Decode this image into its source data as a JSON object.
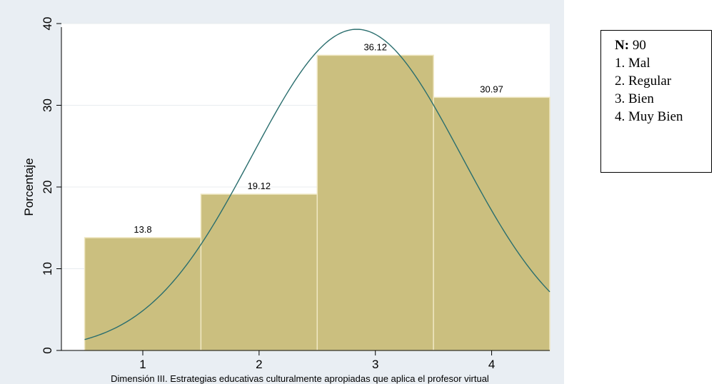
{
  "chart_data": {
    "type": "bar",
    "categories": [
      "1",
      "2",
      "3",
      "4"
    ],
    "values": [
      13.8,
      19.12,
      36.12,
      30.97
    ],
    "data_labels": [
      "13.8",
      "19.12",
      "36.12",
      "30.97"
    ],
    "title": "",
    "xlabel": "Dimensión III.  Estrategias educativas culturalmente apropiadas que aplica el profesor virtual",
    "ylabel": "Porcentaje",
    "ylim": [
      0,
      40
    ],
    "xlim": [
      0.3,
      4.5
    ],
    "yticks": [
      "0",
      "10",
      "20",
      "30",
      "40"
    ],
    "xticks": [
      "1",
      "2",
      "3",
      "4"
    ],
    "overlay": {
      "type": "normal-density-curve",
      "peak": 39.3,
      "mean": 2.84,
      "sd": 0.9
    },
    "grid": true,
    "colors": {
      "bar": "#cbbf7f",
      "bar_edge": "#efe7c2",
      "curve": "#2a6e6e",
      "plot_bg": "#ffffff",
      "outer_bg": "#e9eef3",
      "grid": "#e8ecef"
    }
  },
  "legend": {
    "n_label": "N:",
    "n_value": "90",
    "items": [
      "1. Mal",
      "2. Regular",
      "3. Bien",
      "4. Muy Bien"
    ]
  }
}
